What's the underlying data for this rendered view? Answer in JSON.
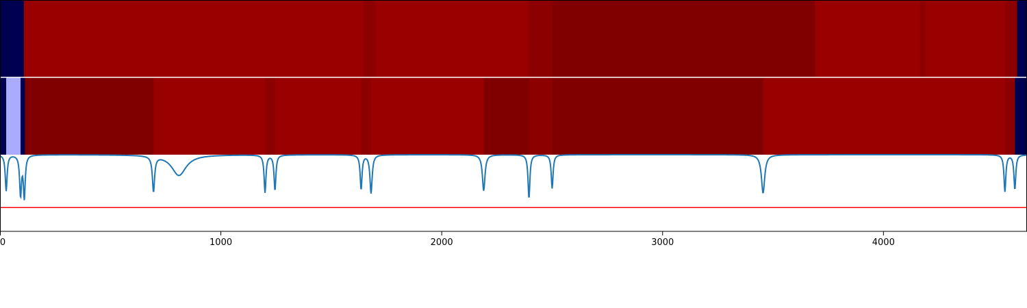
{
  "chart_data": {
    "type": "heatmap",
    "title": "",
    "xlabel": "",
    "ylabel": "",
    "xlim": [
      0,
      4650
    ],
    "x_ticks": [
      {
        "value": 0,
        "label": "0"
      },
      {
        "value": 1000,
        "label": "1000"
      },
      {
        "value": 2000,
        "label": "2000"
      },
      {
        "value": 3000,
        "label": "3000"
      },
      {
        "value": 4000,
        "label": "4000"
      }
    ],
    "colors": {
      "navy": "#000050",
      "red": "#990000",
      "dark_red": "#800000",
      "mid_red": "#8c0000",
      "light_blue": "#aaaaff",
      "line": "#1f77b4",
      "threshold": "#ff0000"
    },
    "tracks": [
      {
        "segments": [
          {
            "start": 0,
            "end": 108,
            "color": "navy"
          },
          {
            "start": 108,
            "end": 1645,
            "color": "red"
          },
          {
            "start": 1645,
            "end": 1700,
            "color": "mid_red"
          },
          {
            "start": 1700,
            "end": 2390,
            "color": "red"
          },
          {
            "start": 2390,
            "end": 2500,
            "color": "mid_red"
          },
          {
            "start": 2500,
            "end": 3690,
            "color": "dark_red"
          },
          {
            "start": 3690,
            "end": 4165,
            "color": "red"
          },
          {
            "start": 4165,
            "end": 4190,
            "color": "mid_red"
          },
          {
            "start": 4190,
            "end": 4550,
            "color": "red"
          },
          {
            "start": 4550,
            "end": 4605,
            "color": "mid_red"
          },
          {
            "start": 4605,
            "end": 4650,
            "color": "navy"
          }
        ]
      },
      {
        "segments": [
          {
            "start": 0,
            "end": 28,
            "color": "navy"
          },
          {
            "start": 28,
            "end": 93,
            "color": "light_blue"
          },
          {
            "start": 93,
            "end": 113,
            "color": "navy"
          },
          {
            "start": 113,
            "end": 695,
            "color": "dark_red"
          },
          {
            "start": 695,
            "end": 1200,
            "color": "red"
          },
          {
            "start": 1200,
            "end": 1245,
            "color": "mid_red"
          },
          {
            "start": 1245,
            "end": 1635,
            "color": "red"
          },
          {
            "start": 1635,
            "end": 1680,
            "color": "mid_red"
          },
          {
            "start": 1680,
            "end": 2190,
            "color": "red"
          },
          {
            "start": 2190,
            "end": 2395,
            "color": "dark_red"
          },
          {
            "start": 2395,
            "end": 2500,
            "color": "mid_red"
          },
          {
            "start": 2500,
            "end": 3455,
            "color": "dark_red"
          },
          {
            "start": 3455,
            "end": 4550,
            "color": "red"
          },
          {
            "start": 4550,
            "end": 4595,
            "color": "mid_red"
          },
          {
            "start": 4595,
            "end": 4650,
            "color": "navy"
          }
        ]
      }
    ],
    "line_series": {
      "ylim": [
        0,
        1
      ],
      "baseline": 1.0,
      "threshold": 0.31,
      "dips": [
        {
          "center": 28,
          "depth": 0.47,
          "width": 5
        },
        {
          "center": 93,
          "depth": 0.52,
          "width": 5
        },
        {
          "center": 110,
          "depth": 0.55,
          "width": 5
        },
        {
          "center": 695,
          "depth": 0.46,
          "width": 6
        },
        {
          "center": 810,
          "depth": 0.27,
          "width": 40
        },
        {
          "center": 1200,
          "depth": 0.49,
          "width": 5
        },
        {
          "center": 1245,
          "depth": 0.46,
          "width": 5
        },
        {
          "center": 1635,
          "depth": 0.45,
          "width": 5
        },
        {
          "center": 1680,
          "depth": 0.5,
          "width": 6
        },
        {
          "center": 2190,
          "depth": 0.47,
          "width": 7
        },
        {
          "center": 2395,
          "depth": 0.57,
          "width": 5
        },
        {
          "center": 2500,
          "depth": 0.44,
          "width": 5
        },
        {
          "center": 3455,
          "depth": 0.5,
          "width": 9
        },
        {
          "center": 4550,
          "depth": 0.48,
          "width": 5
        },
        {
          "center": 4595,
          "depth": 0.45,
          "width": 5
        }
      ]
    }
  }
}
